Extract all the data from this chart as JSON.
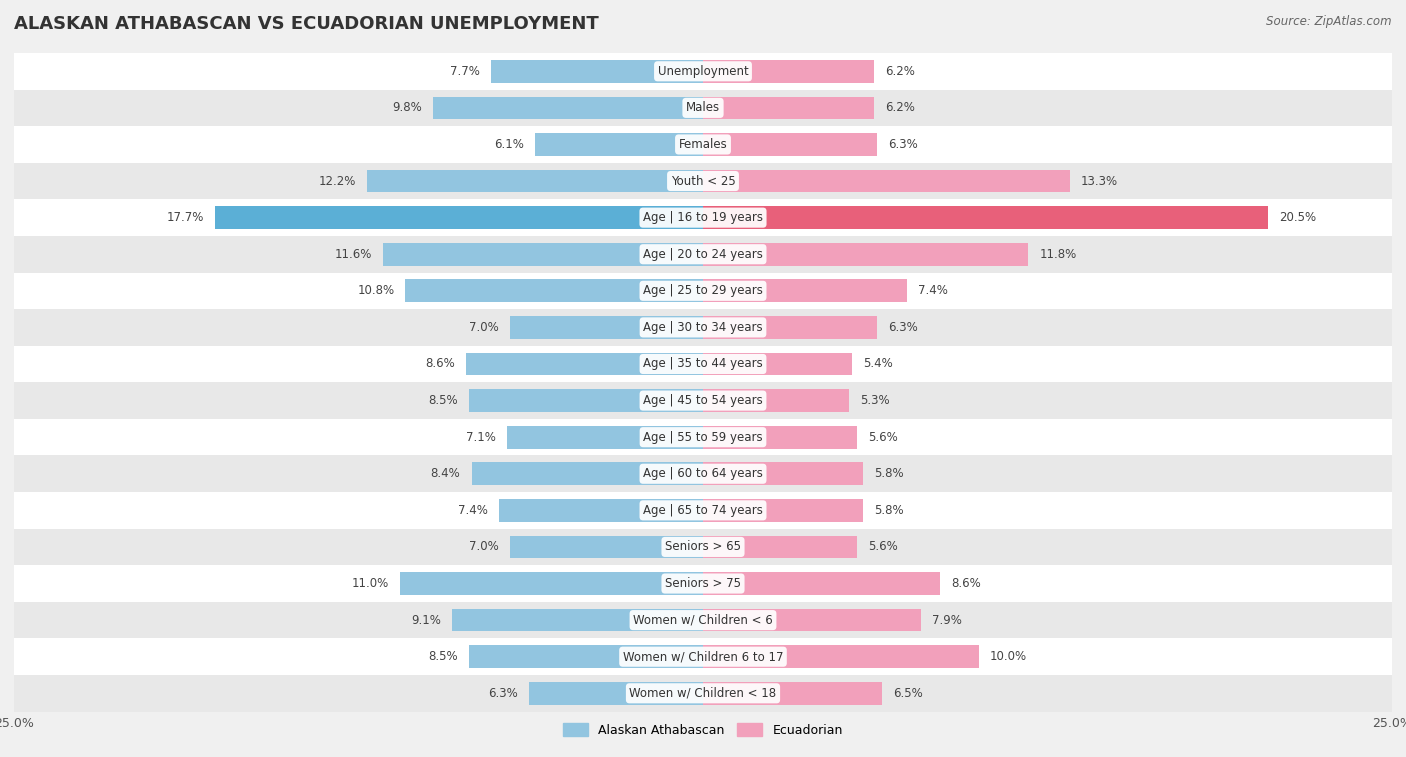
{
  "title": "ALASKAN ATHABASCAN VS ECUADORIAN UNEMPLOYMENT",
  "source": "Source: ZipAtlas.com",
  "categories": [
    "Unemployment",
    "Males",
    "Females",
    "Youth < 25",
    "Age | 16 to 19 years",
    "Age | 20 to 24 years",
    "Age | 25 to 29 years",
    "Age | 30 to 34 years",
    "Age | 35 to 44 years",
    "Age | 45 to 54 years",
    "Age | 55 to 59 years",
    "Age | 60 to 64 years",
    "Age | 65 to 74 years",
    "Seniors > 65",
    "Seniors > 75",
    "Women w/ Children < 6",
    "Women w/ Children 6 to 17",
    "Women w/ Children < 18"
  ],
  "alaskan": [
    7.7,
    9.8,
    6.1,
    12.2,
    17.7,
    11.6,
    10.8,
    7.0,
    8.6,
    8.5,
    7.1,
    8.4,
    7.4,
    7.0,
    11.0,
    9.1,
    8.5,
    6.3
  ],
  "ecuadorian": [
    6.2,
    6.2,
    6.3,
    13.3,
    20.5,
    11.8,
    7.4,
    6.3,
    5.4,
    5.3,
    5.6,
    5.8,
    5.8,
    5.6,
    8.6,
    7.9,
    10.0,
    6.5
  ],
  "alaskan_color": "#92C5E0",
  "ecuadorian_color": "#F2A0BB",
  "alaskan_highlight_color": "#5BAFD6",
  "ecuadorian_highlight_color": "#E8607A",
  "highlight_row": 4,
  "bar_height": 0.62,
  "xlim": 25.0,
  "bg_color": "#f0f0f0",
  "row_bg_light": "#ffffff",
  "row_bg_dark": "#e8e8e8",
  "legend_alaskan": "Alaskan Athabascan",
  "legend_ecuadorian": "Ecuadorian",
  "title_fontsize": 13,
  "label_fontsize": 8.5,
  "cat_fontsize": 8.5,
  "tick_fontsize": 9,
  "source_fontsize": 8.5
}
